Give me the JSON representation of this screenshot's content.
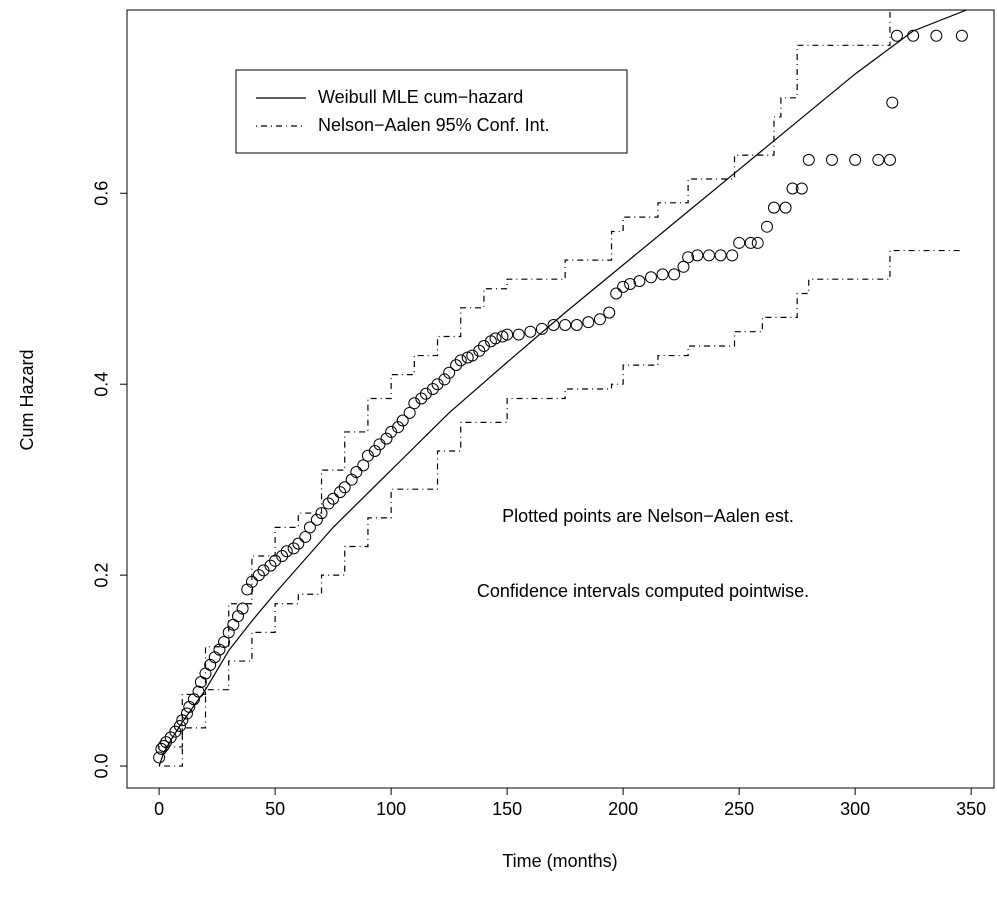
{
  "chart_data": {
    "type": "scatter",
    "xlabel": "Time (months)",
    "ylabel": "Cum Hazard",
    "xlim": [
      -13.84,
      359.84
    ],
    "ylim": [
      -0.023,
      0.792
    ],
    "xticks": [
      0,
      50,
      100,
      150,
      200,
      250,
      300,
      350
    ],
    "yticks": [
      {
        "value": 0,
        "label": "0.0"
      },
      0.2,
      0.4,
      0.6
    ],
    "series": [
      {
        "style": "points",
        "color": "#000000",
        "x": [
          0,
          1,
          2,
          3,
          5,
          7,
          9,
          10,
          12,
          13,
          15,
          17,
          18,
          20,
          22,
          24,
          26,
          28,
          30,
          32,
          34,
          36,
          38,
          40,
          43,
          45,
          48,
          50,
          53,
          55,
          58,
          60,
          63,
          65,
          68,
          70,
          73,
          75,
          78,
          80,
          83,
          85,
          88,
          90,
          93,
          95,
          98,
          100,
          103,
          105,
          108,
          110,
          113,
          115,
          118,
          120,
          123,
          125,
          128,
          130,
          133,
          135,
          138,
          140,
          143,
          145,
          148,
          150,
          155,
          160,
          165,
          170,
          175,
          180,
          185,
          190,
          194,
          197,
          200,
          203,
          207,
          212,
          217,
          222,
          226,
          228,
          232,
          237,
          242,
          247,
          250,
          255,
          258,
          262,
          265,
          270,
          273,
          277,
          280,
          290,
          300,
          310,
          315,
          316,
          318,
          325,
          335,
          346
        ],
        "values": [
          0.009,
          0.018,
          0.021,
          0.025,
          0.03,
          0.036,
          0.042,
          0.048,
          0.055,
          0.062,
          0.07,
          0.078,
          0.088,
          0.097,
          0.106,
          0.114,
          0.122,
          0.13,
          0.14,
          0.148,
          0.157,
          0.165,
          0.185,
          0.193,
          0.2,
          0.205,
          0.21,
          0.215,
          0.22,
          0.225,
          0.228,
          0.233,
          0.24,
          0.25,
          0.258,
          0.265,
          0.275,
          0.28,
          0.287,
          0.292,
          0.3,
          0.308,
          0.315,
          0.325,
          0.33,
          0.337,
          0.343,
          0.35,
          0.355,
          0.362,
          0.37,
          0.38,
          0.385,
          0.39,
          0.395,
          0.4,
          0.405,
          0.412,
          0.42,
          0.425,
          0.428,
          0.43,
          0.435,
          0.44,
          0.445,
          0.448,
          0.45,
          0.452,
          0.452,
          0.455,
          0.458,
          0.462,
          0.462,
          0.462,
          0.465,
          0.468,
          0.475,
          0.495,
          0.502,
          0.505,
          0.508,
          0.512,
          0.515,
          0.515,
          0.523,
          0.533,
          0.535,
          0.535,
          0.535,
          0.535,
          0.548,
          0.548,
          0.548,
          0.565,
          0.585,
          0.585,
          0.605,
          0.605,
          0.635,
          0.635,
          0.635,
          0.635,
          0.635,
          0.695,
          0.765,
          0.765,
          0.765,
          0.765
        ]
      },
      {
        "name": "Weibull MLE cum−hazard",
        "style": "solid",
        "color": "#000000",
        "x": [
          0,
          2,
          5,
          10,
          20,
          30,
          40,
          50,
          75,
          100,
          125,
          150,
          175,
          200,
          225,
          250,
          275,
          300,
          325,
          348
        ],
        "values": [
          0,
          0.014,
          0.027,
          0.046,
          0.08,
          0.121,
          0.152,
          0.181,
          0.25,
          0.31,
          0.37,
          0.423,
          0.475,
          0.525,
          0.575,
          0.625,
          0.675,
          0.725,
          0.77,
          0.792
        ]
      },
      {
        "name": "Nelson−Aalen 95% Conf. Int.",
        "style": "dashdot",
        "color": "#000000",
        "x": [
          0,
          10,
          20,
          30,
          40,
          50,
          60,
          70,
          80,
          90,
          100,
          110,
          120,
          130,
          140,
          150,
          175,
          195,
          200,
          215,
          228,
          248,
          265,
          268,
          275,
          300,
          315
        ],
        "values": [
          0.02,
          0.075,
          0.125,
          0.17,
          0.22,
          0.25,
          0.265,
          0.31,
          0.35,
          0.385,
          0.41,
          0.43,
          0.45,
          0.48,
          0.5,
          0.51,
          0.53,
          0.56,
          0.575,
          0.59,
          0.615,
          0.64,
          0.68,
          0.7,
          0.755,
          0.755,
          0.79
        ]
      },
      {
        "style": "dashdot",
        "color": "#000000",
        "x": [
          0,
          10,
          20,
          30,
          40,
          50,
          60,
          70,
          80,
          90,
          100,
          120,
          130,
          150,
          175,
          195,
          200,
          215,
          228,
          248,
          260,
          275,
          280,
          300,
          315,
          346
        ],
        "values": [
          0,
          0.04,
          0.08,
          0.11,
          0.14,
          0.17,
          0.18,
          0.2,
          0.23,
          0.26,
          0.29,
          0.33,
          0.36,
          0.385,
          0.395,
          0.4,
          0.42,
          0.43,
          0.44,
          0.455,
          0.47,
          0.495,
          0.51,
          0.51,
          0.54,
          0.54
        ]
      }
    ],
    "annotations": [
      "Plotted points are Nelson−Aalen est.",
      "Confidence intervals computed pointwise."
    ]
  }
}
